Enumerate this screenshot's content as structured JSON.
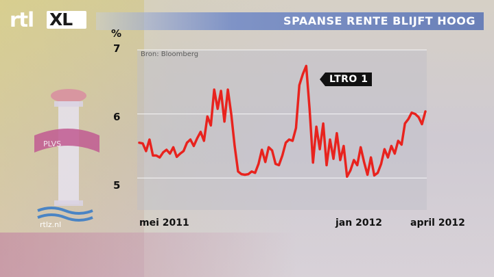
{
  "header": {
    "logo_text": "rtl",
    "logo_badge": "XL",
    "title": "SPAANSE RENTE BLIJFT HOOG"
  },
  "footer": {
    "site": "rtlz.nl"
  },
  "colors": {
    "line": "#e8231e",
    "title_bar": "#7f93c6",
    "panel": "#bebec8"
  },
  "chart_data": {
    "type": "line",
    "title": "SPAANSE RENTE BLIJFT HOOG",
    "ylabel": "%",
    "source": "Bron: Bloomberg",
    "ylim": [
      4.5,
      7
    ],
    "yticks": [
      "5",
      "6",
      "7"
    ],
    "grid": "horizontal",
    "xticks": [
      {
        "label": "mei 2011",
        "index": 0
      },
      {
        "label": "jan 2012",
        "index": 42
      },
      {
        "label": "april 2012",
        "index": 84
      }
    ],
    "annotation": {
      "label": "LTRO 1",
      "index": 48
    },
    "series": [
      {
        "values": [
          5.55,
          5.54,
          5.42,
          5.6,
          5.35,
          5.35,
          5.32,
          5.4,
          5.44,
          5.38,
          5.48,
          5.33,
          5.38,
          5.42,
          5.55,
          5.6,
          5.5,
          5.62,
          5.72,
          5.58,
          5.96,
          5.82,
          6.38,
          6.08,
          6.36,
          5.88,
          6.38,
          6.0,
          5.5,
          5.1,
          5.06,
          5.05,
          5.06,
          5.1,
          5.08,
          5.22,
          5.44,
          5.25,
          5.48,
          5.43,
          5.22,
          5.2,
          5.35,
          5.55,
          5.6,
          5.58,
          5.78,
          6.45,
          6.62,
          6.75,
          6.08,
          5.24,
          5.8,
          5.45,
          5.85,
          5.2,
          5.6,
          5.3,
          5.7,
          5.28,
          5.5,
          5.02,
          5.12,
          5.28,
          5.2,
          5.48,
          5.25,
          5.05,
          5.32,
          5.04,
          5.08,
          5.22,
          5.45,
          5.32,
          5.5,
          5.38,
          5.58,
          5.52,
          5.85,
          5.92,
          6.02,
          6.0,
          5.95,
          5.84,
          6.04
        ]
      }
    ]
  }
}
